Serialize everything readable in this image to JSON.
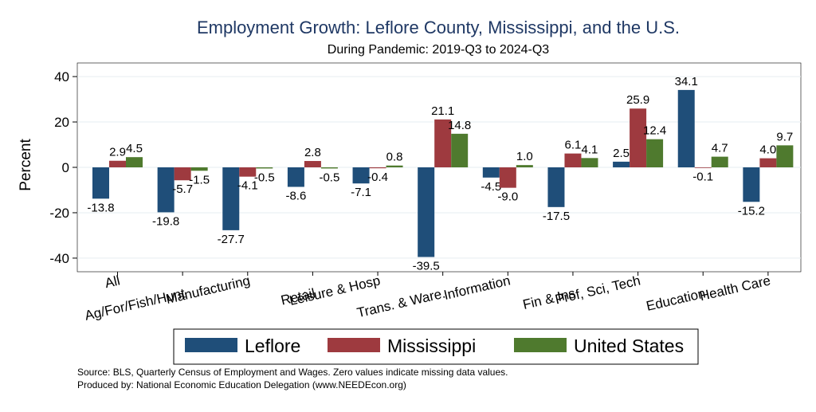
{
  "chart_data": {
    "type": "bar",
    "title": "Employment Growth: Leflore County, Mississippi, and the U.S.",
    "subtitle": "During Pandemic: 2019-Q3 to 2024-Q3",
    "ylabel": "Percent",
    "xlabel": "",
    "ylim": [
      -46,
      46
    ],
    "yticks": [
      -40,
      -20,
      0,
      20,
      40
    ],
    "grid": true,
    "legend_position": "bottom",
    "categories": [
      "All",
      "Ag/For/Fish/Hunt",
      "Manufacturing",
      "Retail",
      "Leisure & Hosp",
      "Trans. & Ware.",
      "Information",
      "Fin & Ins",
      "Prof, Sci, Tech",
      "Education",
      "Health Care"
    ],
    "series": [
      {
        "name": "Leflore",
        "color": "#1f4e79",
        "values": [
          -13.8,
          -19.8,
          -27.7,
          -8.6,
          -7.1,
          -39.5,
          -4.5,
          -17.5,
          2.5,
          34.1,
          -15.2
        ]
      },
      {
        "name": "Mississippi",
        "color": "#9e3a3f",
        "values": [
          2.9,
          -5.7,
          -4.1,
          2.8,
          -0.4,
          21.1,
          -9.0,
          6.1,
          25.9,
          -0.1,
          4.0
        ]
      },
      {
        "name": "United States",
        "color": "#4f7a2e",
        "values": [
          4.5,
          -1.5,
          -0.5,
          -0.5,
          0.8,
          14.8,
          1.0,
          4.1,
          12.4,
          4.7,
          9.7
        ]
      }
    ],
    "notes": [
      "Source: BLS, Quarterly Census of Employment and Wages. Zero values indicate missing data values.",
      "Produced by: National Economic Education Delegation (www.NEEDEcon.org)"
    ]
  }
}
